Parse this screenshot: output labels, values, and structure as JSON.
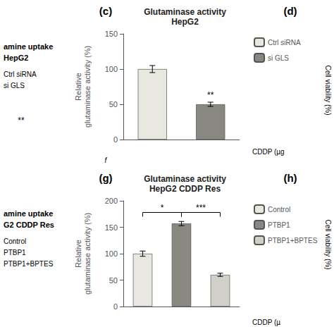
{
  "chart_data": [
    {
      "type": "bar",
      "title": "Glutaminase activity",
      "subtitle": "HepG2",
      "categories": [
        null,
        null
      ],
      "series": [
        {
          "name": "Ctrl siRNA",
          "color": "#e8e8e0",
          "values": [
            100,
            null
          ],
          "errors": [
            5,
            null
          ]
        },
        {
          "name": "si GLS",
          "color": "#888880",
          "values": [
            null,
            50
          ],
          "errors": [
            null,
            3
          ]
        }
      ],
      "ylabel": "Relative\nglutaminase activity (%)",
      "ylim": [
        0,
        150
      ],
      "yticks": [
        0,
        50,
        100,
        150
      ],
      "grid": false,
      "legend": "right",
      "tick_labels": "y",
      "significance": [
        {
          "at": 1,
          "y": 57,
          "label": "**"
        }
      ],
      "annotations": [
        "(c)",
        "(d)",
        "amine uptake",
        "HepG2",
        "Ctrl siRNA",
        "si GLS",
        "**",
        "Cell viability (%)",
        "CDDP (µg"
      ]
    },
    {
      "type": "bar",
      "title": "Glutaminase activity",
      "subtitle": "HepG2 CDDP Res",
      "categories": [
        null,
        null,
        null
      ],
      "series": [
        {
          "name": "Control",
          "color": "#e8e8e0",
          "values": [
            100,
            null,
            null
          ],
          "errors": [
            5,
            null,
            null
          ]
        },
        {
          "name": "PTBP1",
          "color": "#888880",
          "values": [
            null,
            157,
            null
          ],
          "errors": [
            null,
            4,
            null
          ]
        },
        {
          "name": "PTBP1+BPTES",
          "color": "#d0d0c8",
          "values": [
            null,
            null,
            60
          ],
          "errors": [
            null,
            null,
            3
          ]
        }
      ],
      "ylabel": "Relative\nglutaminase activity (%)",
      "ylim": [
        0,
        200
      ],
      "yticks": [
        0,
        50,
        100,
        150,
        200
      ],
      "grid": false,
      "legend": "right",
      "tick_labels": "y",
      "brackets": [
        {
          "from": 0,
          "to": 1,
          "y": 178,
          "label": "*"
        },
        {
          "from": 1,
          "to": 2,
          "y": 178,
          "label": "***"
        }
      ],
      "annotations": [
        "(g)",
        "(h)",
        "f",
        "amine uptake",
        "G2 CDDP Res",
        "Control",
        "PTBP1",
        "PTBP1+BPTES",
        "Cell viability (%)",
        "CDDP (µ"
      ]
    }
  ]
}
